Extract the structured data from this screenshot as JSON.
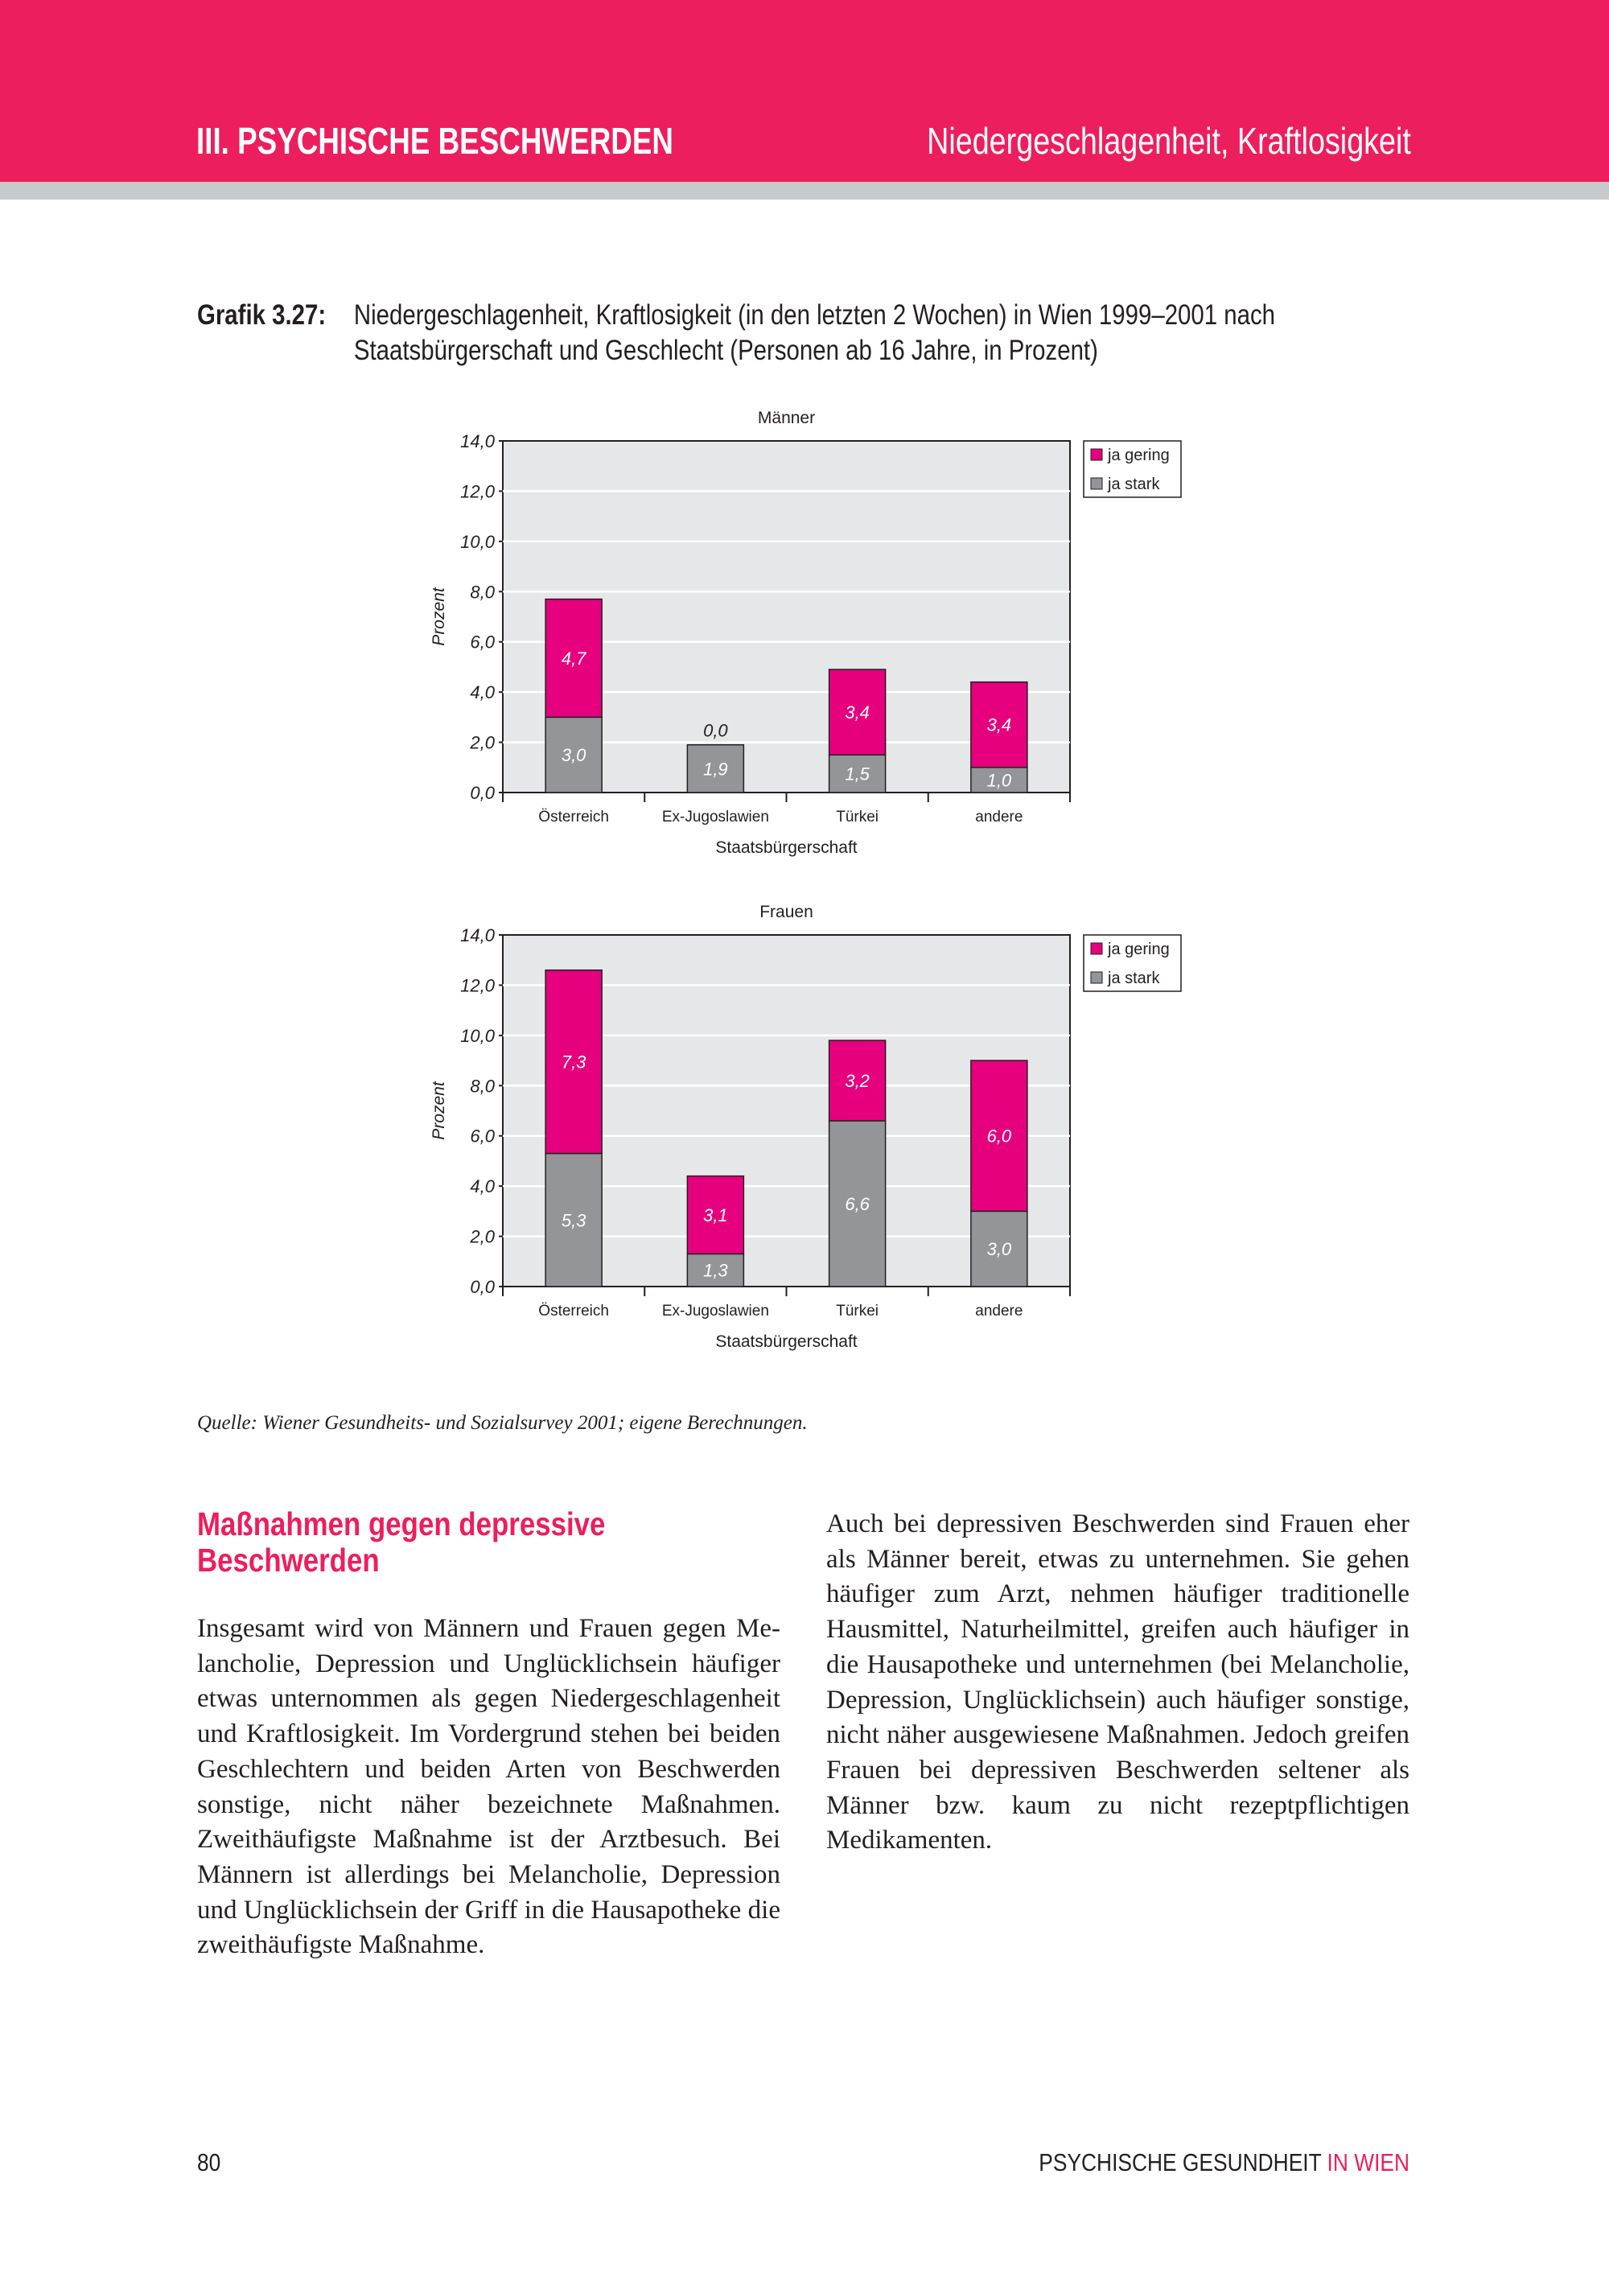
{
  "header": {
    "section": "III. PSYCHISCHE BESCHWERDEN",
    "topic": "Niedergeschlagenheit, Kraftlosigkeit"
  },
  "caption": {
    "label": "Grafik 3.27:",
    "text": "Niedergeschlagenheit, Kraftlosigkeit (in den letzten 2 Wochen) in Wien 1999–2001 nach Staatsbürgerschaft und Geschlecht (Personen ab 16 Jahre, in Prozent)"
  },
  "colors": {
    "header": "#ec1e5e",
    "ja_gering": "#e6007e",
    "ja_stark": "#939598",
    "plot_bg": "#e6e7e8"
  },
  "chart_data": [
    {
      "type": "bar",
      "stacked": true,
      "title": "Männer",
      "xlabel": "Staatsbürgerschaft",
      "ylabel": "Prozent",
      "categories": [
        "Österreich",
        "Ex-Jugoslawien",
        "Türkei",
        "andere"
      ],
      "ylim": [
        0,
        14
      ],
      "yticks": [
        "0,0",
        "2,0",
        "4,0",
        "6,0",
        "8,0",
        "10,0",
        "12,0",
        "14,0"
      ],
      "grid": true,
      "legend": "right",
      "series": [
        {
          "name": "ja stark",
          "values": [
            3.0,
            1.9,
            1.5,
            1.0
          ],
          "labels": [
            "3,0",
            "1,9",
            "1,5",
            "1,0"
          ]
        },
        {
          "name": "ja gering",
          "values": [
            4.7,
            0.0,
            3.4,
            3.4
          ],
          "labels": [
            "4,7",
            "0,0",
            "3,4",
            "3,4"
          ]
        }
      ]
    },
    {
      "type": "bar",
      "stacked": true,
      "title": "Frauen",
      "xlabel": "Staatsbürgerschaft",
      "ylabel": "Prozent",
      "categories": [
        "Österreich",
        "Ex-Jugoslawien",
        "Türkei",
        "andere"
      ],
      "ylim": [
        0,
        14
      ],
      "yticks": [
        "0,0",
        "2,0",
        "4,0",
        "6,0",
        "8,0",
        "10,0",
        "12,0",
        "14,0"
      ],
      "grid": true,
      "legend": "right",
      "series": [
        {
          "name": "ja stark",
          "values": [
            5.3,
            1.3,
            6.6,
            3.0
          ],
          "labels": [
            "5,3",
            "1,3",
            "6,6",
            "3,0"
          ]
        },
        {
          "name": "ja gering",
          "values": [
            7.3,
            3.1,
            3.2,
            6.0
          ],
          "labels": [
            "7,3",
            "3,1",
            "3,2",
            "6,0"
          ]
        }
      ]
    }
  ],
  "source": "Quelle:  Wiener Gesundheits- und Sozialsurvey 2001; eigene Berechnungen.",
  "section": {
    "heading": "Maßnahmen gegen depressive Beschwerden",
    "left_text": "Insgesamt wird von Männern und Frauen gegen Me­lancholie, Depression und Unglücklichsein häufiger et­was unternommen als gegen Niedergeschlagenheit und Kraftlosigkeit. Im Vordergrund stehen bei beiden Ge­schlechtern und beiden Arten von Beschwerden sonsti­ge, nicht näher bezeichnete Maßnahmen. Zweithäu­figste Maßnahme ist der Arztbesuch. Bei Männern ist allerdings bei Melancholie, Depression und Unglück­lichsein der Griff in die Hausapotheke die zweithäufigs­te Maßnahme.",
    "right_text": "Auch bei depressiven Beschwerden sind Frauen eher als Männer bereit, etwas zu unternehmen. Sie gehen häufiger zum Arzt, nehmen häufiger traditionelle Hausmittel, Naturheilmittel, greifen auch häufiger in die Hausapotheke und unternehmen (bei Melancholie, Depression, Unglücklichsein) auch häufiger sonstige, nicht näher ausgewiesene Maßnahmen. Jedoch greifen Frauen bei depressiven Beschwerden seltener als Män­ner bzw. kaum zu nicht rezeptpflichtigen Medikamen­ten."
  },
  "footer": {
    "page_number": "80",
    "title_main": "PSYCHISCHE GESUNDHEIT ",
    "title_accent": "IN WIEN"
  }
}
